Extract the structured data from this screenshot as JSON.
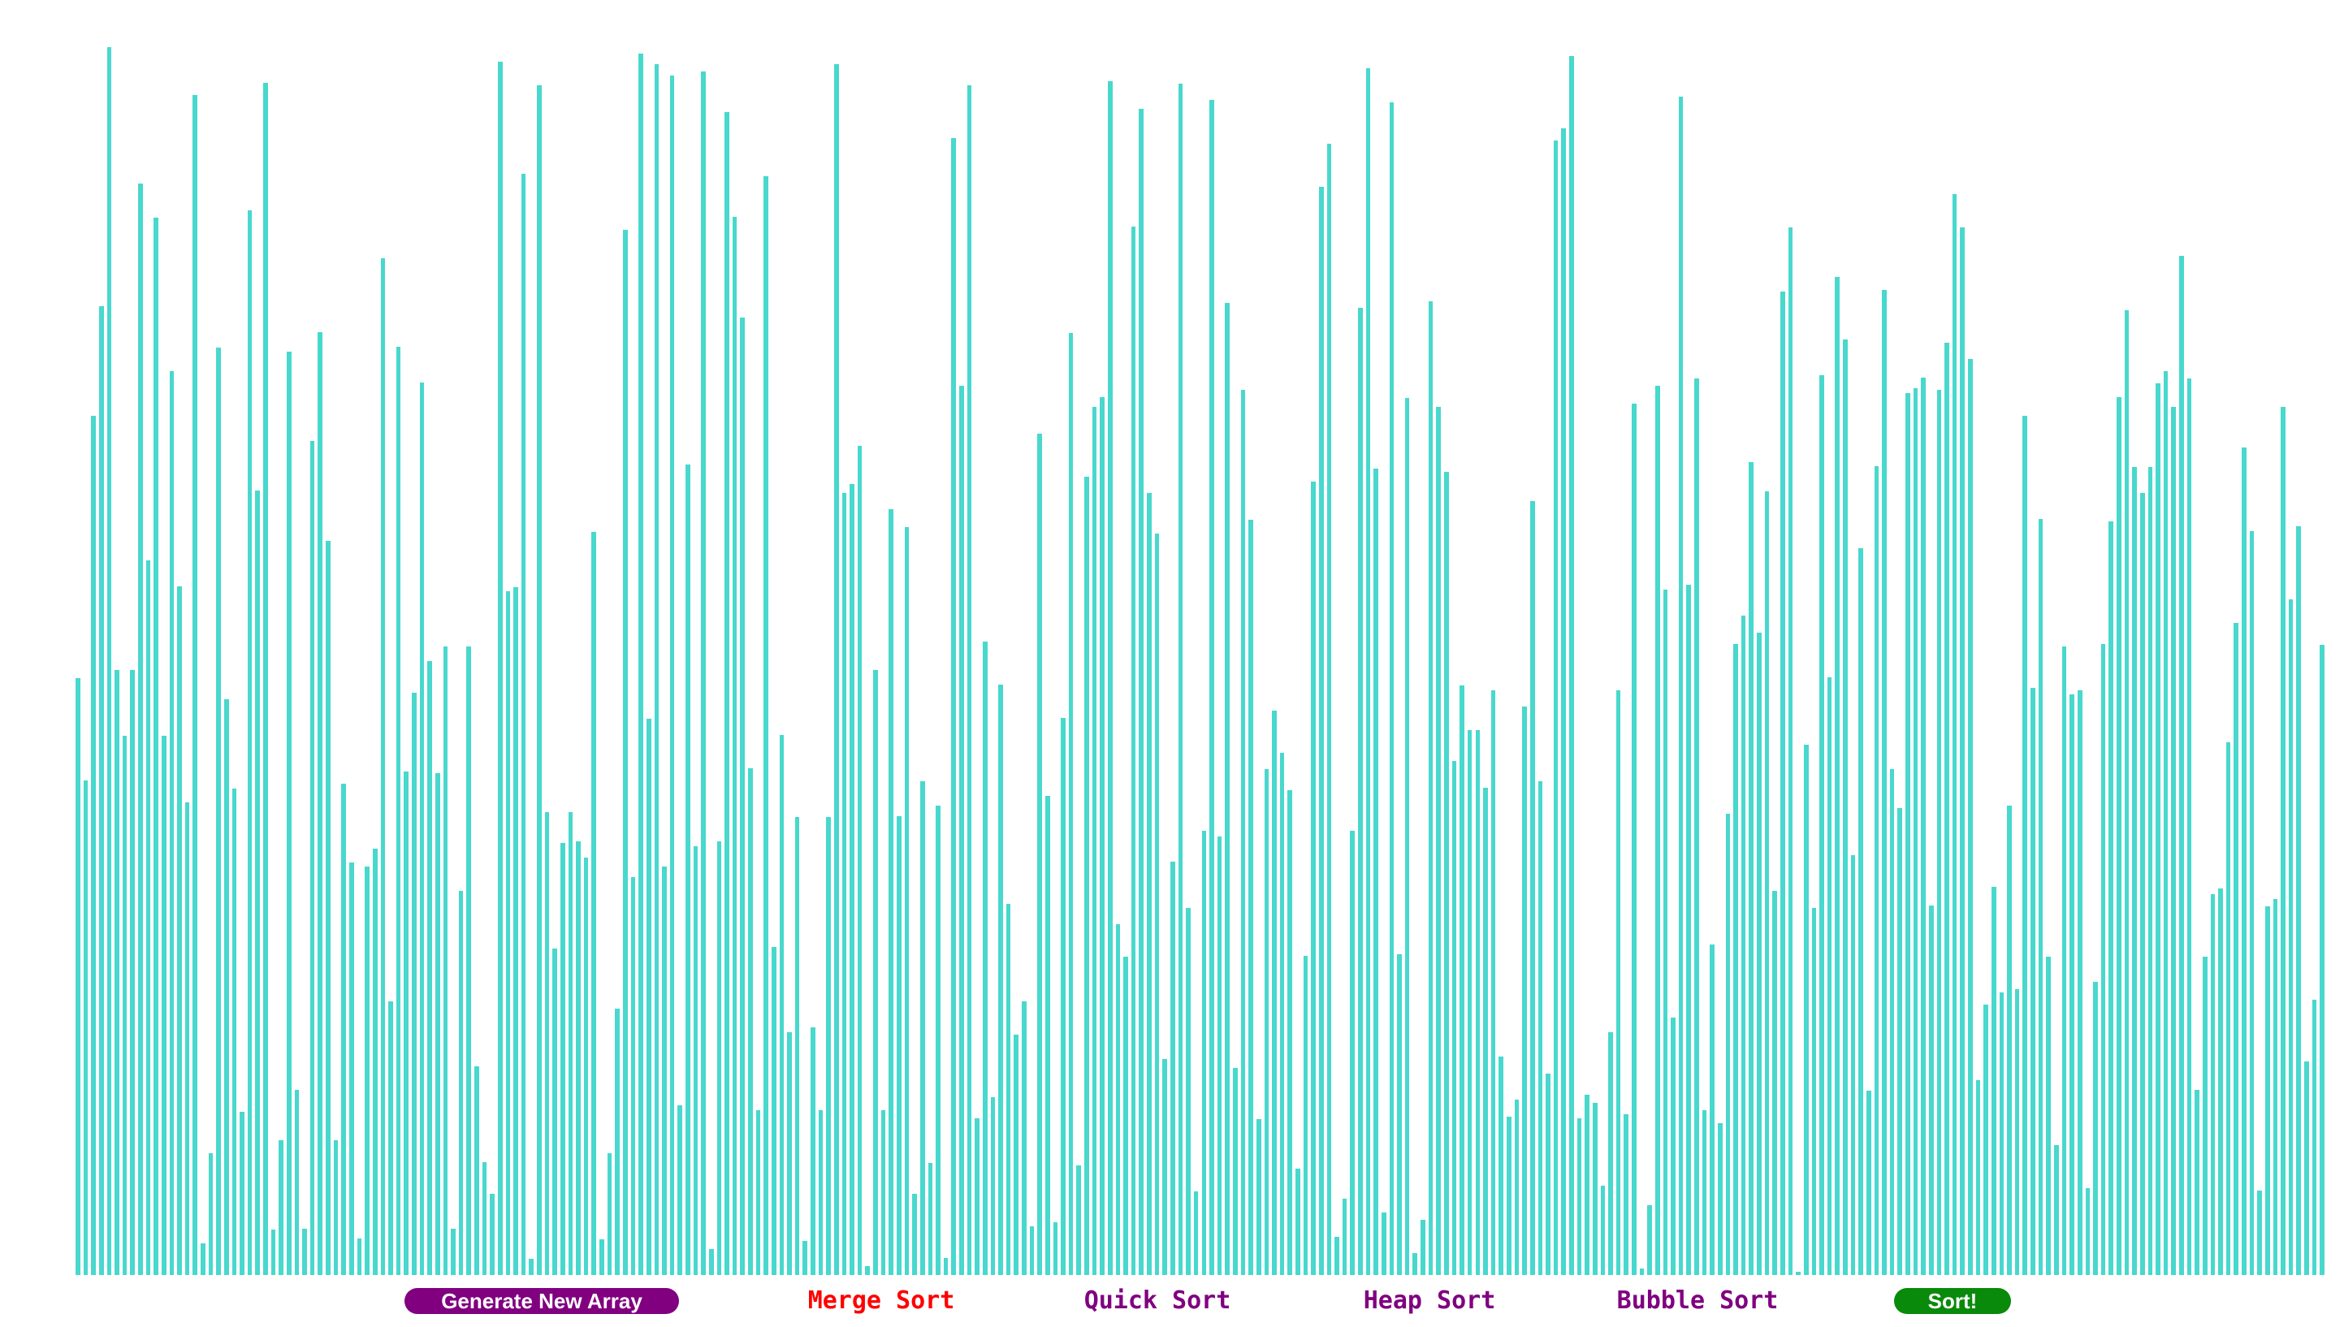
{
  "colors": {
    "bar": "#48d8cd",
    "generate_bg": "#800080",
    "sort_bg": "#0a8a0a",
    "algo_text": "#800080",
    "selected_text": "#ff0000"
  },
  "controls": {
    "generate_label": "Generate New Array",
    "algorithms": [
      {
        "label": "Merge Sort",
        "selected": true
      },
      {
        "label": "Quick Sort",
        "selected": false
      },
      {
        "label": "Heap Sort",
        "selected": false
      },
      {
        "label": "Bubble Sort",
        "selected": false
      }
    ],
    "sort_label": "Sort!"
  },
  "chart_data": {
    "type": "bar",
    "ylim": [
      0,
      1
    ],
    "values": [
      0.486,
      0.403,
      0.7,
      0.789,
      1.0,
      0.493,
      0.439,
      0.493,
      0.889,
      0.582,
      0.861,
      0.439,
      0.736,
      0.561,
      0.385,
      0.961,
      0.026,
      0.099,
      0.755,
      0.469,
      0.396,
      0.133,
      0.867,
      0.639,
      0.971,
      0.037,
      0.11,
      0.752,
      0.151,
      0.038,
      0.679,
      0.768,
      0.598,
      0.11,
      0.4,
      0.336,
      0.03,
      0.333,
      0.347,
      0.828,
      0.223,
      0.756,
      0.41,
      0.474,
      0.727,
      0.5,
      0.409,
      0.512,
      0.038,
      0.313,
      0.512,
      0.17,
      0.092,
      0.066,
      0.988,
      0.557,
      0.56,
      0.897,
      0.013,
      0.969,
      0.377,
      0.266,
      0.352,
      0.377,
      0.353,
      0.34,
      0.605,
      0.029,
      0.099,
      0.217,
      0.851,
      0.324,
      0.995,
      0.453,
      0.986,
      0.333,
      0.977,
      0.138,
      0.66,
      0.349,
      0.98,
      0.021,
      0.353,
      0.947,
      0.862,
      0.78,
      0.413,
      0.134,
      0.895,
      0.267,
      0.44,
      0.198,
      0.373,
      0.028,
      0.202,
      0.134,
      0.373,
      0.986,
      0.637,
      0.644,
      0.675,
      0.007,
      0.493,
      0.134,
      0.624,
      0.374,
      0.609,
      0.066,
      0.402,
      0.091,
      0.382,
      0.014,
      0.926,
      0.724,
      0.969,
      0.128,
      0.516,
      0.145,
      0.481,
      0.302,
      0.196,
      0.223,
      0.04,
      0.685,
      0.39,
      0.043,
      0.454,
      0.767,
      0.089,
      0.65,
      0.707,
      0.715,
      0.972,
      0.286,
      0.259,
      0.854,
      0.95,
      0.637,
      0.604,
      0.176,
      0.337,
      0.97,
      0.299,
      0.068,
      0.362,
      0.957,
      0.357,
      0.792,
      0.169,
      0.721,
      0.615,
      0.127,
      0.412,
      0.46,
      0.425,
      0.395,
      0.087,
      0.26,
      0.646,
      0.886,
      0.921,
      0.031,
      0.062,
      0.362,
      0.788,
      0.983,
      0.657,
      0.051,
      0.955,
      0.261,
      0.714,
      0.018,
      0.045,
      0.793,
      0.707,
      0.654,
      0.419,
      0.48,
      0.444,
      0.444,
      0.397,
      0.476,
      0.178,
      0.129,
      0.143,
      0.463,
      0.63,
      0.402,
      0.164,
      0.924,
      0.934,
      0.993,
      0.128,
      0.147,
      0.14,
      0.073,
      0.198,
      0.476,
      0.131,
      0.71,
      0.005,
      0.057,
      0.724,
      0.558,
      0.21,
      0.96,
      0.562,
      0.73,
      0.134,
      0.269,
      0.124,
      0.376,
      0.514,
      0.537,
      0.662,
      0.523,
      0.638,
      0.313,
      0.801,
      0.853,
      0.003,
      0.432,
      0.299,
      0.733,
      0.487,
      0.813,
      0.762,
      0.342,
      0.592,
      0.15,
      0.659,
      0.802,
      0.412,
      0.38,
      0.718,
      0.722,
      0.731,
      0.301,
      0.721,
      0.759,
      0.88,
      0.853,
      0.746,
      0.159,
      0.22,
      0.316,
      0.23,
      0.382,
      0.233,
      0.7,
      0.478,
      0.616,
      0.259,
      0.106,
      0.512,
      0.473,
      0.476,
      0.071,
      0.239,
      0.514,
      0.614,
      0.715,
      0.786,
      0.658,
      0.637,
      0.658,
      0.726,
      0.736,
      0.707,
      0.83,
      0.73,
      0.151,
      0.259,
      0.31,
      0.315,
      0.434,
      0.531,
      0.674,
      0.606,
      0.069,
      0.3,
      0.306,
      0.707,
      0.55,
      0.61,
      0.174,
      0.224,
      0.513
    ]
  }
}
